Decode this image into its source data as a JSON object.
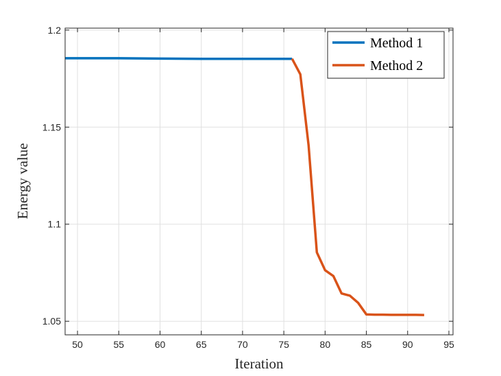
{
  "chart_data": {
    "type": "line",
    "xlabel": "Iteration",
    "ylabel": "Energy value",
    "xlim": [
      48.5,
      95.5
    ],
    "ylim": [
      1.043,
      1.201
    ],
    "xticks": [
      50,
      55,
      60,
      65,
      70,
      75,
      80,
      85,
      90,
      95
    ],
    "yticks": [
      1.05,
      1.1,
      1.15,
      1.2
    ],
    "ytick_labels": [
      "1.05",
      "1.1",
      "1.15",
      "1.2"
    ],
    "grid": true,
    "legend_position": "top-right",
    "series": [
      {
        "name": "Method 1",
        "color": "#0072BD",
        "x": [
          48.5,
          55,
          60,
          65,
          70,
          76
        ],
        "y": [
          1.1855,
          1.1855,
          1.1853,
          1.1852,
          1.1852,
          1.1852
        ]
      },
      {
        "name": "Method 2",
        "color": "#D95319",
        "x": [
          76,
          77,
          78,
          79,
          80,
          81,
          82,
          83,
          84,
          85,
          86,
          87,
          88,
          89,
          90,
          91,
          92
        ],
        "y": [
          1.1852,
          1.1772,
          1.1405,
          1.0855,
          1.0763,
          1.0733,
          1.0643,
          1.0632,
          1.0595,
          1.0535,
          1.0534,
          1.0534,
          1.0533,
          1.0533,
          1.0533,
          1.0533,
          1.0532
        ]
      }
    ]
  }
}
